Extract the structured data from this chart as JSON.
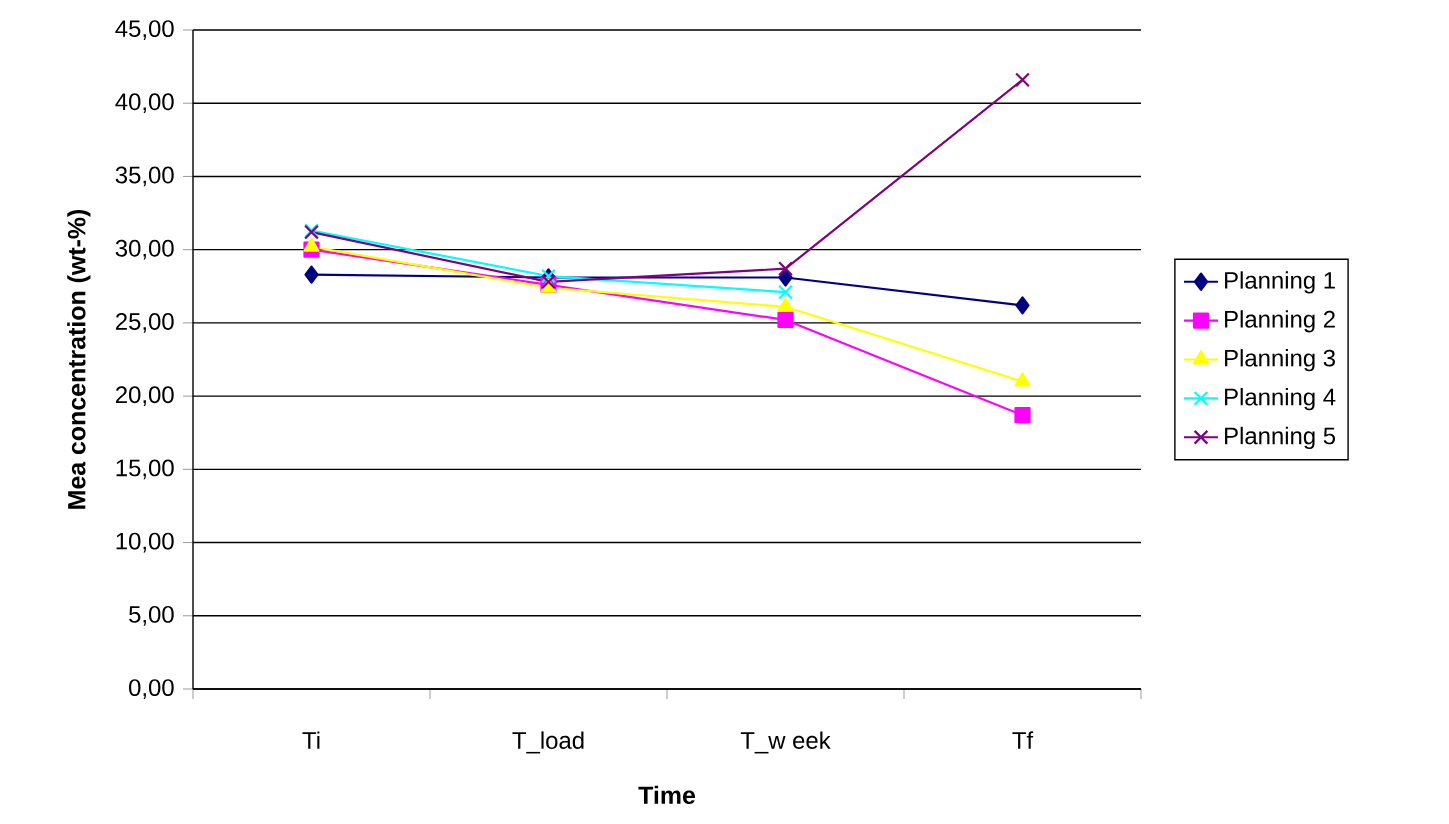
{
  "chart_data": {
    "type": "line",
    "xlabel": "Time",
    "ylabel": "Mea concentration (wt-%)",
    "categories": [
      "Ti",
      "T_load",
      "T_w eek",
      "Tf"
    ],
    "series": [
      {
        "name": "Planning 1",
        "color": "#000080",
        "marker": "diamond",
        "values": [
          28.3,
          28.1,
          28.1,
          26.2
        ]
      },
      {
        "name": "Planning 2",
        "color": "#ff00ff",
        "marker": "square",
        "values": [
          30.0,
          27.6,
          25.2,
          18.7
        ]
      },
      {
        "name": "Planning 3",
        "color": "#ffff00",
        "marker": "triangle",
        "values": [
          30.2,
          27.4,
          26.1,
          21.0
        ]
      },
      {
        "name": "Planning 4",
        "color": "#00ffff",
        "marker": "cross",
        "values": [
          31.3,
          28.2,
          27.1,
          null
        ]
      },
      {
        "name": "Planning 5",
        "color": "#800080",
        "marker": "cross",
        "values": [
          31.2,
          27.8,
          28.7,
          41.6
        ]
      }
    ],
    "ylim": [
      0,
      45
    ],
    "yticks": [
      {
        "value": 0,
        "label": "0,00"
      },
      {
        "value": 5,
        "label": "5,00"
      },
      {
        "value": 10,
        "label": "10,00"
      },
      {
        "value": 15,
        "label": "15,00"
      },
      {
        "value": 20,
        "label": "20,00"
      },
      {
        "value": 25,
        "label": "25,00"
      },
      {
        "value": 30,
        "label": "30,00"
      },
      {
        "value": 35,
        "label": "35,00"
      },
      {
        "value": 40,
        "label": "40,00"
      },
      {
        "value": 45,
        "label": "45,00"
      }
    ],
    "grid": "y",
    "legend": "right",
    "line_style": "solid"
  }
}
